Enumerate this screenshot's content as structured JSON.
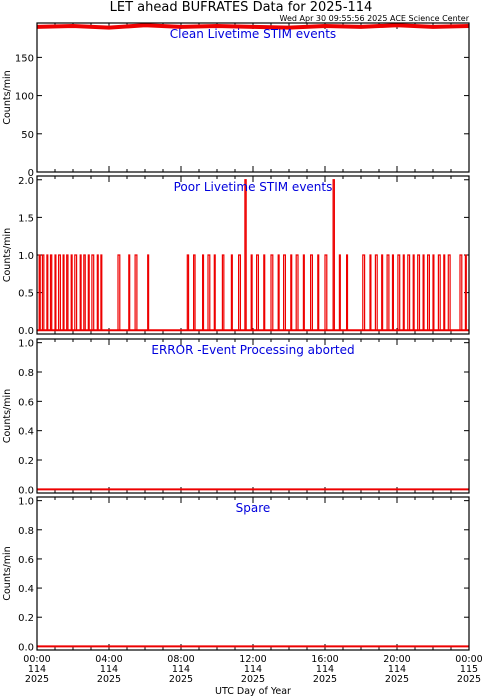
{
  "title": "LET ahead BUFRATES Data for 2025-114",
  "timestamp": "Wed Apr 30 09:55:56 2025 ACE Science Center",
  "xlabel": "UTC Day of Year",
  "colors": {
    "data": "#ee0000",
    "panel_title": "#0000dd",
    "axes": "#000000",
    "background": "#ffffff"
  },
  "x_ticks": [
    {
      "time": "00:00",
      "day": "114",
      "year": "2025"
    },
    {
      "time": "04:00",
      "day": "114",
      "year": "2025"
    },
    {
      "time": "08:00",
      "day": "114",
      "year": "2025"
    },
    {
      "time": "12:00",
      "day": "114",
      "year": "2025"
    },
    {
      "time": "16:00",
      "day": "114",
      "year": "2025"
    },
    {
      "time": "20:00",
      "day": "114",
      "year": "2025"
    },
    {
      "time": "00:00",
      "day": "115",
      "year": "2025"
    }
  ],
  "chart_data": [
    {
      "type": "line",
      "title": "Clean Livetime STIM events",
      "ylabel": "Counts/min",
      "xlim_hours": [
        0,
        24
      ],
      "ylim": [
        0,
        195
      ],
      "y_ticks": [
        "0",
        "50",
        "100",
        "150"
      ],
      "series": [
        {
          "segments": [
            {
              "x": [
                0,
                2,
                4,
                6,
                8,
                10,
                12,
                14,
                16,
                18,
                20,
                22,
                24
              ],
              "y": [
                190,
                191,
                189,
                192,
                190,
                191,
                190,
                189,
                191,
                190,
                192,
                190,
                191
              ]
            }
          ]
        }
      ]
    },
    {
      "type": "line",
      "title": "Poor Livetime STIM events",
      "ylabel": "Counts/min",
      "xlim_hours": [
        0,
        24
      ],
      "ylim": [
        -0.05,
        2.05
      ],
      "y_ticks": [
        "0.0",
        "0.5",
        "1.0",
        "1.5",
        "2.0"
      ],
      "series": [
        {
          "segments": [
            {
              "x": [
                0.12,
                0.18
              ],
              "y": [
                1,
                1
              ]
            },
            {
              "x": [
                0.3,
                0.38
              ],
              "y": [
                1,
                1
              ]
            },
            {
              "x": [
                0.55,
                0.6
              ],
              "y": [
                1,
                1
              ]
            },
            {
              "x": [
                0.75,
                0.82
              ],
              "y": [
                1,
                1
              ]
            },
            {
              "x": [
                1.0,
                1.05
              ],
              "y": [
                1,
                1
              ]
            },
            {
              "x": [
                1.2,
                1.3
              ],
              "y": [
                1,
                1
              ]
            },
            {
              "x": [
                1.45,
                1.5
              ],
              "y": [
                1,
                1
              ]
            },
            {
              "x": [
                1.65,
                1.72
              ],
              "y": [
                1,
                1
              ]
            },
            {
              "x": [
                1.9,
                1.95
              ],
              "y": [
                1,
                1
              ]
            },
            {
              "x": [
                2.1,
                2.2
              ],
              "y": [
                1,
                1
              ]
            },
            {
              "x": [
                2.4,
                2.45
              ],
              "y": [
                1,
                1
              ]
            },
            {
              "x": [
                2.6,
                2.68
              ],
              "y": [
                1,
                1
              ]
            },
            {
              "x": [
                2.85,
                2.9
              ],
              "y": [
                1,
                1
              ]
            },
            {
              "x": [
                3.05,
                3.15
              ],
              "y": [
                1,
                1
              ]
            },
            {
              "x": [
                3.35,
                3.4
              ],
              "y": [
                1,
                1
              ]
            },
            {
              "x": [
                3.55,
                3.6
              ],
              "y": [
                1,
                1
              ]
            },
            {
              "x": [
                4.5,
                4.6
              ],
              "y": [
                1,
                1
              ]
            },
            {
              "x": [
                5.1,
                5.15
              ],
              "y": [
                1,
                1
              ]
            },
            {
              "x": [
                5.45,
                5.55
              ],
              "y": [
                1,
                1
              ]
            },
            {
              "x": [
                6.15,
                6.2
              ],
              "y": [
                1,
                1
              ]
            },
            {
              "x": [
                8.35,
                8.42
              ],
              "y": [
                1,
                1
              ]
            },
            {
              "x": [
                8.7,
                8.78
              ],
              "y": [
                1,
                1
              ]
            },
            {
              "x": [
                9.2,
                9.25
              ],
              "y": [
                1,
                1
              ]
            },
            {
              "x": [
                9.5,
                9.6
              ],
              "y": [
                1,
                1
              ]
            },
            {
              "x": [
                9.85,
                9.9
              ],
              "y": [
                1,
                1
              ]
            },
            {
              "x": [
                10.3,
                10.38
              ],
              "y": [
                1,
                1
              ]
            },
            {
              "x": [
                10.8,
                10.85
              ],
              "y": [
                1,
                1
              ]
            },
            {
              "x": [
                11.2,
                11.3
              ],
              "y": [
                1,
                1
              ]
            },
            {
              "x": [
                11.55,
                11.62
              ],
              "y": [
                2,
                2
              ]
            },
            {
              "x": [
                11.9,
                11.95
              ],
              "y": [
                1,
                1
              ]
            },
            {
              "x": [
                12.2,
                12.3
              ],
              "y": [
                1,
                1
              ]
            },
            {
              "x": [
                12.6,
                12.65
              ],
              "y": [
                1,
                1
              ]
            },
            {
              "x": [
                13.0,
                13.1
              ],
              "y": [
                1,
                1
              ]
            },
            {
              "x": [
                13.4,
                13.45
              ],
              "y": [
                1,
                1
              ]
            },
            {
              "x": [
                13.7,
                13.8
              ],
              "y": [
                1,
                1
              ]
            },
            {
              "x": [
                14.1,
                14.15
              ],
              "y": [
                1,
                1
              ]
            },
            {
              "x": [
                14.4,
                14.5
              ],
              "y": [
                1,
                1
              ]
            },
            {
              "x": [
                14.8,
                14.85
              ],
              "y": [
                1,
                1
              ]
            },
            {
              "x": [
                15.2,
                15.3
              ],
              "y": [
                1,
                1
              ]
            },
            {
              "x": [
                15.6,
                15.65
              ],
              "y": [
                1,
                1
              ]
            },
            {
              "x": [
                16.0,
                16.1
              ],
              "y": [
                1,
                1
              ]
            },
            {
              "x": [
                16.45,
                16.52
              ],
              "y": [
                2,
                2
              ]
            },
            {
              "x": [
                16.8,
                16.85
              ],
              "y": [
                1,
                1
              ]
            },
            {
              "x": [
                17.2,
                17.25
              ],
              "y": [
                1,
                1
              ]
            },
            {
              "x": [
                18.1,
                18.2
              ],
              "y": [
                1,
                1
              ]
            },
            {
              "x": [
                18.5,
                18.55
              ],
              "y": [
                1,
                1
              ]
            },
            {
              "x": [
                18.8,
                18.9
              ],
              "y": [
                1,
                1
              ]
            },
            {
              "x": [
                19.15,
                19.2
              ],
              "y": [
                1,
                1
              ]
            },
            {
              "x": [
                19.45,
                19.55
              ],
              "y": [
                1,
                1
              ]
            },
            {
              "x": [
                19.75,
                19.8
              ],
              "y": [
                1,
                1
              ]
            },
            {
              "x": [
                20.05,
                20.15
              ],
              "y": [
                1,
                1
              ]
            },
            {
              "x": [
                20.35,
                20.4
              ],
              "y": [
                1,
                1
              ]
            },
            {
              "x": [
                20.6,
                20.7
              ],
              "y": [
                1,
                1
              ]
            },
            {
              "x": [
                20.9,
                20.95
              ],
              "y": [
                1,
                1
              ]
            },
            {
              "x": [
                21.15,
                21.25
              ],
              "y": [
                1,
                1
              ]
            },
            {
              "x": [
                21.45,
                21.5
              ],
              "y": [
                1,
                1
              ]
            },
            {
              "x": [
                21.7,
                21.8
              ],
              "y": [
                1,
                1
              ]
            },
            {
              "x": [
                22.0,
                22.05
              ],
              "y": [
                1,
                1
              ]
            },
            {
              "x": [
                22.3,
                22.4
              ],
              "y": [
                1,
                1
              ]
            },
            {
              "x": [
                22.6,
                22.65
              ],
              "y": [
                1,
                1
              ]
            },
            {
              "x": [
                22.85,
                22.95
              ],
              "y": [
                1,
                1
              ]
            },
            {
              "x": [
                23.5,
                23.6
              ],
              "y": [
                1,
                1
              ]
            },
            {
              "x": [
                23.8,
                23.85
              ],
              "y": [
                1,
                1
              ]
            }
          ]
        }
      ]
    },
    {
      "type": "line",
      "title": "ERROR -Event Processing aborted",
      "ylabel": "Counts/min",
      "xlim_hours": [
        0,
        24
      ],
      "ylim": [
        -0.025,
        1.025
      ],
      "y_ticks": [
        "0.0",
        "0.2",
        "0.4",
        "0.6",
        "0.8",
        "1.0"
      ],
      "series": [
        {
          "segments": [
            {
              "x": [
                0,
                24
              ],
              "y": [
                0,
                0
              ]
            }
          ]
        }
      ]
    },
    {
      "type": "line",
      "title": "Spare",
      "ylabel": "Counts/min",
      "xlim_hours": [
        0,
        24
      ],
      "ylim": [
        -0.025,
        1.025
      ],
      "y_ticks": [
        "0.0",
        "0.2",
        "0.4",
        "0.6",
        "0.8",
        "1.0"
      ],
      "series": [
        {
          "segments": [
            {
              "x": [
                0,
                24
              ],
              "y": [
                0,
                0
              ]
            }
          ]
        }
      ]
    }
  ]
}
